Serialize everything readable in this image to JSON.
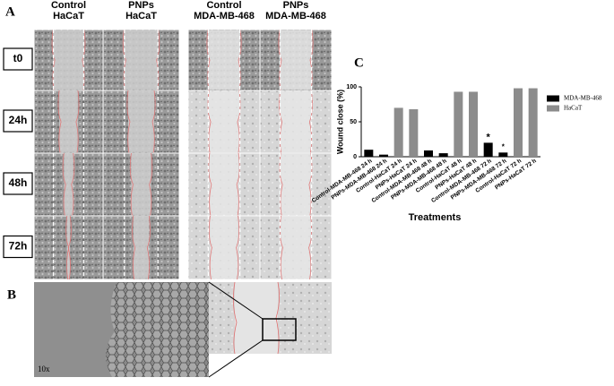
{
  "panel_a": {
    "label": "A",
    "columns": [
      [
        "Control",
        "HaCaT"
      ],
      [
        "PNPs",
        "HaCaT"
      ],
      [
        "Control",
        "MDA-MB-468"
      ],
      [
        "PNPs",
        "MDA-MB-468"
      ]
    ],
    "rows": [
      "t0",
      "24h",
      "48h",
      "72h"
    ]
  },
  "panel_b": {
    "label": "B",
    "magnification": "10x"
  },
  "panel_c": {
    "label": "C"
  },
  "chart_data": {
    "type": "bar",
    "y_label": "Wound close (%)",
    "x_label": "Treatments",
    "categories": [
      "Control-MDA-MB-468 24 h",
      "PNPs-MDA-MB-468 24 h",
      "Control-HaCaT 24 h",
      "PNPs-HaCaT 24 h",
      "Control-MDA-MB-468 48 h",
      "PNPs-MDA-MB-468 48 h",
      "Control-HaCaT 48 h",
      "PNPs-HaCaT 48 h",
      "Control-MDA-MB-468 72 h",
      "PNPs-MDA-MB-468 72 h",
      "Control-HaCaT 72 h",
      "PNPs-HaCaT 72 h"
    ],
    "series": [
      {
        "name": "MDA-MB-468",
        "color": "#000000",
        "values": [
          10,
          3,
          null,
          null,
          9,
          5,
          null,
          null,
          20,
          6,
          null,
          null
        ]
      },
      {
        "name": "HaCaT",
        "color": "#8c8c8c",
        "values": [
          null,
          null,
          70,
          68,
          null,
          null,
          93,
          93,
          null,
          null,
          98,
          98
        ]
      }
    ],
    "significance_marks": [
      "*",
      "*"
    ],
    "ylim": [
      0,
      100
    ],
    "yticks": [
      0,
      50,
      100
    ],
    "legend": "upper right"
  }
}
